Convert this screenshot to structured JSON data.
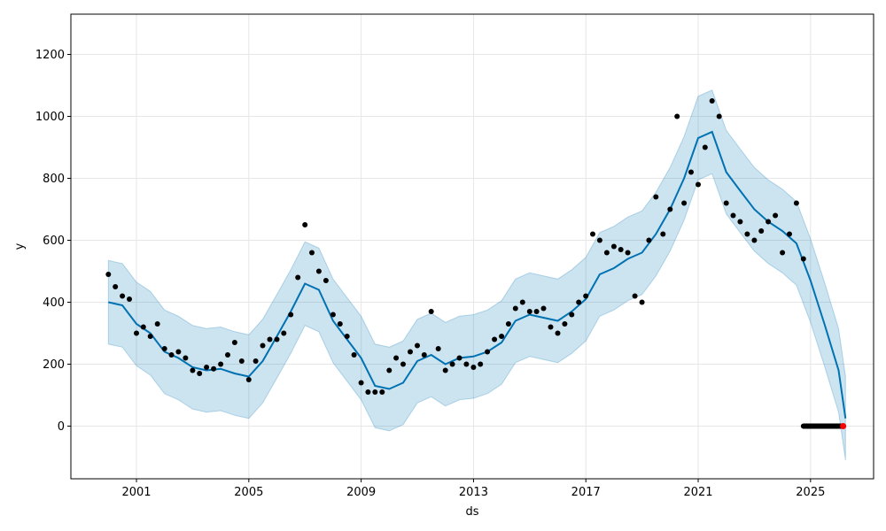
{
  "chart_data": {
    "type": "line",
    "title": "",
    "xlabel": "ds",
    "ylabel": "y",
    "xlim": [
      "1998-09-01",
      "2027-04-01"
    ],
    "ylim": [
      -170,
      1330
    ],
    "x_ticks": [
      "2001",
      "2005",
      "2009",
      "2013",
      "2017",
      "2021",
      "2025"
    ],
    "y_ticks": [
      0,
      200,
      400,
      600,
      800,
      1000,
      1200
    ],
    "grid": true,
    "legend": "none",
    "colors": {
      "forecast_line": "#0072B2",
      "uncertainty_band": "#0072B2",
      "observed_points": "#000000",
      "highlight_points": "#ff0000"
    },
    "forecast": {
      "name": "",
      "x": [
        "2000-01-01",
        "2000-07-01",
        "2001-01-01",
        "2001-07-01",
        "2002-01-01",
        "2002-07-01",
        "2003-01-01",
        "2003-07-01",
        "2004-01-01",
        "2004-07-01",
        "2005-01-01",
        "2005-07-01",
        "2006-01-01",
        "2006-07-01",
        "2007-01-01",
        "2007-07-01",
        "2008-01-01",
        "2008-07-01",
        "2009-01-01",
        "2009-07-01",
        "2010-01-01",
        "2010-07-01",
        "2011-01-01",
        "2011-07-01",
        "2012-01-01",
        "2012-07-01",
        "2013-01-01",
        "2013-07-01",
        "2014-01-01",
        "2014-07-01",
        "2015-01-01",
        "2015-07-01",
        "2016-01-01",
        "2016-07-01",
        "2017-01-01",
        "2017-07-01",
        "2018-01-01",
        "2018-07-01",
        "2019-01-01",
        "2019-07-01",
        "2020-01-01",
        "2020-07-01",
        "2021-01-01",
        "2021-07-01",
        "2022-01-01",
        "2022-07-01",
        "2023-01-01",
        "2023-07-01",
        "2024-01-01",
        "2024-07-01",
        "2025-01-01",
        "2025-07-01",
        "2026-01-01",
        "2026-04-01"
      ],
      "yhat": [
        400,
        390,
        330,
        300,
        240,
        220,
        190,
        180,
        185,
        170,
        160,
        210,
        290,
        370,
        460,
        440,
        340,
        280,
        220,
        130,
        120,
        140,
        210,
        230,
        200,
        220,
        225,
        240,
        270,
        340,
        360,
        350,
        340,
        370,
        410,
        490,
        510,
        540,
        560,
        620,
        700,
        800,
        930,
        950,
        820,
        760,
        700,
        660,
        630,
        590,
        470,
        330,
        180,
        25
      ],
      "yhat_lower": [
        265,
        255,
        195,
        165,
        105,
        85,
        55,
        45,
        50,
        35,
        25,
        75,
        155,
        235,
        325,
        305,
        205,
        145,
        85,
        -5,
        -15,
        5,
        75,
        95,
        65,
        85,
        90,
        105,
        135,
        205,
        225,
        215,
        205,
        235,
        275,
        355,
        375,
        405,
        425,
        485,
        565,
        665,
        795,
        815,
        685,
        625,
        565,
        525,
        495,
        455,
        335,
        195,
        45,
        -110
      ],
      "yhat_upper": [
        535,
        525,
        465,
        435,
        375,
        355,
        325,
        315,
        320,
        305,
        295,
        345,
        425,
        505,
        595,
        575,
        475,
        415,
        355,
        265,
        255,
        275,
        345,
        365,
        335,
        355,
        360,
        375,
        405,
        475,
        495,
        485,
        475,
        505,
        545,
        625,
        645,
        675,
        695,
        755,
        835,
        935,
        1065,
        1085,
        955,
        895,
        835,
        795,
        765,
        725,
        605,
        465,
        315,
        160
      ]
    },
    "observed": {
      "name": "",
      "x": [
        "2000-01-01",
        "2000-04-01",
        "2000-07-01",
        "2000-10-01",
        "2001-01-01",
        "2001-04-01",
        "2001-07-01",
        "2001-10-01",
        "2002-01-01",
        "2002-04-01",
        "2002-07-01",
        "2002-10-01",
        "2003-01-01",
        "2003-04-01",
        "2003-07-01",
        "2003-10-01",
        "2004-01-01",
        "2004-04-01",
        "2004-07-01",
        "2004-10-01",
        "2005-01-01",
        "2005-04-01",
        "2005-07-01",
        "2005-10-01",
        "2006-01-01",
        "2006-04-01",
        "2006-07-01",
        "2006-10-01",
        "2007-01-01",
        "2007-04-01",
        "2007-07-01",
        "2007-10-01",
        "2008-01-01",
        "2008-04-01",
        "2008-07-01",
        "2008-10-01",
        "2009-01-01",
        "2009-04-01",
        "2009-07-01",
        "2009-10-01",
        "2010-01-01",
        "2010-04-01",
        "2010-07-01",
        "2010-10-01",
        "2011-01-01",
        "2011-04-01",
        "2011-07-01",
        "2011-10-01",
        "2012-01-01",
        "2012-04-01",
        "2012-07-01",
        "2012-10-01",
        "2013-01-01",
        "2013-04-01",
        "2013-07-01",
        "2013-10-01",
        "2014-01-01",
        "2014-04-01",
        "2014-07-01",
        "2014-10-01",
        "2015-01-01",
        "2015-04-01",
        "2015-07-01",
        "2015-10-01",
        "2016-01-01",
        "2016-04-01",
        "2016-07-01",
        "2016-10-01",
        "2017-01-01",
        "2017-04-01",
        "2017-07-01",
        "2017-10-01",
        "2018-01-01",
        "2018-04-01",
        "2018-07-01",
        "2018-10-01",
        "2019-01-01",
        "2019-04-01",
        "2019-07-01",
        "2019-10-01",
        "2020-01-01",
        "2020-04-01",
        "2020-07-01",
        "2020-10-01",
        "2021-01-01",
        "2021-04-01",
        "2021-07-01",
        "2021-10-01",
        "2022-01-01",
        "2022-04-01",
        "2022-07-01",
        "2022-10-01",
        "2023-01-01",
        "2023-04-01",
        "2023-07-01",
        "2023-10-01",
        "2024-01-01",
        "2024-04-01",
        "2024-07-01",
        "2024-10-01"
      ],
      "y": [
        490,
        450,
        420,
        410,
        300,
        320,
        290,
        330,
        250,
        230,
        240,
        220,
        180,
        170,
        190,
        185,
        200,
        230,
        270,
        210,
        150,
        210,
        260,
        280,
        280,
        300,
        360,
        480,
        650,
        560,
        500,
        470,
        360,
        330,
        290,
        230,
        140,
        110,
        110,
        110,
        180,
        220,
        200,
        240,
        260,
        230,
        370,
        250,
        180,
        200,
        220,
        200,
        190,
        200,
        240,
        280,
        290,
        330,
        380,
        400,
        370,
        370,
        380,
        320,
        300,
        330,
        360,
        400,
        420,
        620,
        600,
        560,
        580,
        570,
        560,
        420,
        400,
        600,
        740,
        620,
        700,
        1000,
        720,
        820,
        780,
        900,
        1050,
        1000,
        720,
        680,
        660,
        620,
        600,
        630,
        660,
        680,
        560,
        620,
        720,
        540
      ],
      "highlight": {
        "from": "2024-10-01",
        "to": "2026-03-01",
        "value": 0
      }
    }
  }
}
